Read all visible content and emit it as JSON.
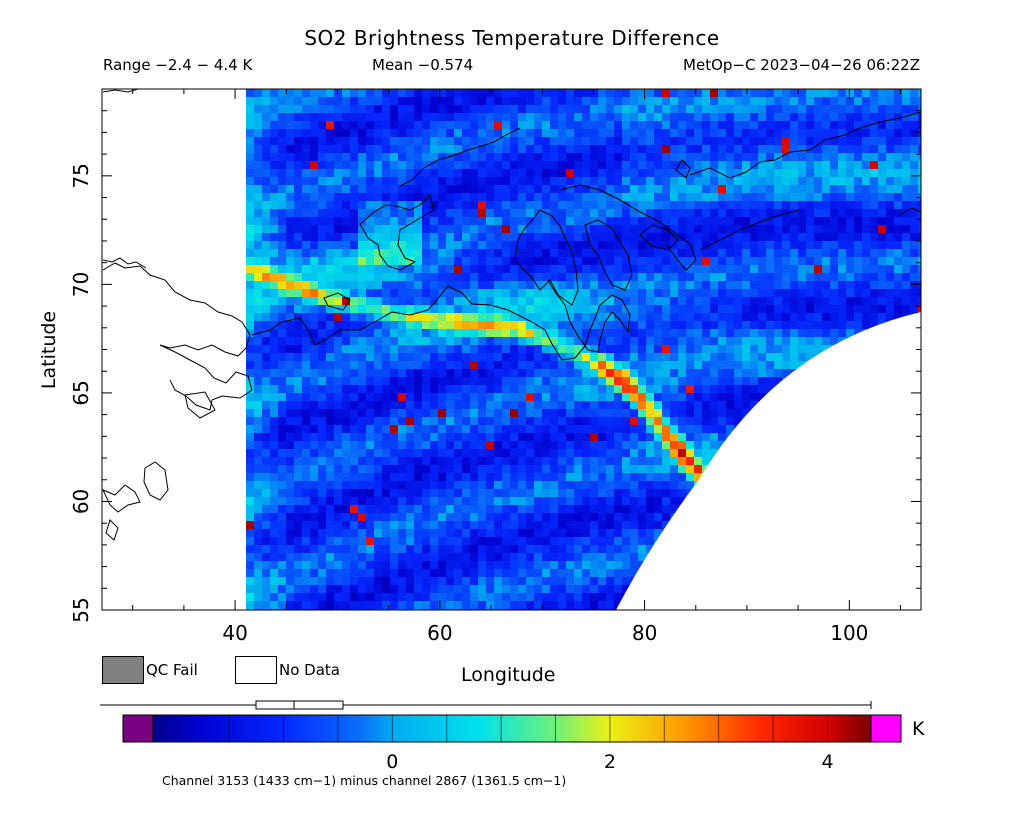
{
  "header": {
    "title": "SO2 Brightness Temperature Difference",
    "range": "Range −2.4 − 4.4 K",
    "mean": "Mean −0.574",
    "satellite": "MetOp−C 2023−04−26 06:22Z"
  },
  "legend": {
    "qc_fail": "QC Fail",
    "no_data": "No Data",
    "qc_fail_color": "#808080",
    "no_data_color": "#ffffff"
  },
  "colorbar": {
    "unit": "K",
    "ticks": [
      0,
      2,
      4
    ],
    "tick_labels": [
      "0",
      "2",
      "4"
    ],
    "range": [
      -2.2,
      4.4
    ],
    "under_color": "#7a0082",
    "over_color": "#ff00ff",
    "channel_note": "Channel 3153 (1433 cm−1) minus channel 2867 (1361.5 cm−1)"
  },
  "chart_data": {
    "type": "heatmap",
    "title": "SO2 Brightness Temperature Difference",
    "xlabel": "Longitude",
    "ylabel": "Latitude",
    "xlim": [
      27,
      107
    ],
    "ylim": [
      55,
      79
    ],
    "xticks": [
      40,
      60,
      80,
      100
    ],
    "yticks": [
      55,
      60,
      65,
      70,
      75
    ],
    "value_range": [
      -2.4,
      4.4
    ],
    "mean": -0.574,
    "units": "K",
    "grid": false
  }
}
